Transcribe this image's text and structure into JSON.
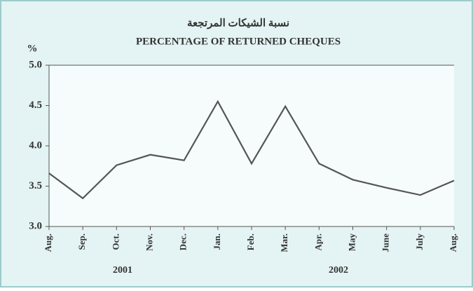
{
  "chart_data": {
    "type": "line",
    "title": "نسبة الشيكات المرتجعة",
    "subtitle": "PERCENTAGE OF RETURNED CHEQUES",
    "y_label": "%",
    "annotations": [
      "2001",
      "2002"
    ],
    "categories": [
      "Aug.",
      "Sep.",
      "Oct.",
      "Nov.",
      "Dec.",
      "Jan.",
      "Feb.",
      "Mar.",
      "Apr.",
      "May",
      "June",
      "July",
      "Aug."
    ],
    "series": [
      {
        "name": "Returned cheques",
        "color": "#555555",
        "values": [
          3.66,
          3.35,
          3.76,
          3.89,
          3.82,
          4.55,
          3.78,
          4.49,
          3.78,
          3.58,
          3.48,
          3.39,
          3.57
        ]
      }
    ],
    "ylim": [
      3.0,
      5.0
    ],
    "yticks": [
      {
        "value": 3.0,
        "label": "3.0"
      },
      3.5,
      {
        "value": 4.0,
        "label": "4.0"
      },
      4.5,
      {
        "value": 5.0,
        "label": "5.0"
      }
    ],
    "grid": false
  }
}
